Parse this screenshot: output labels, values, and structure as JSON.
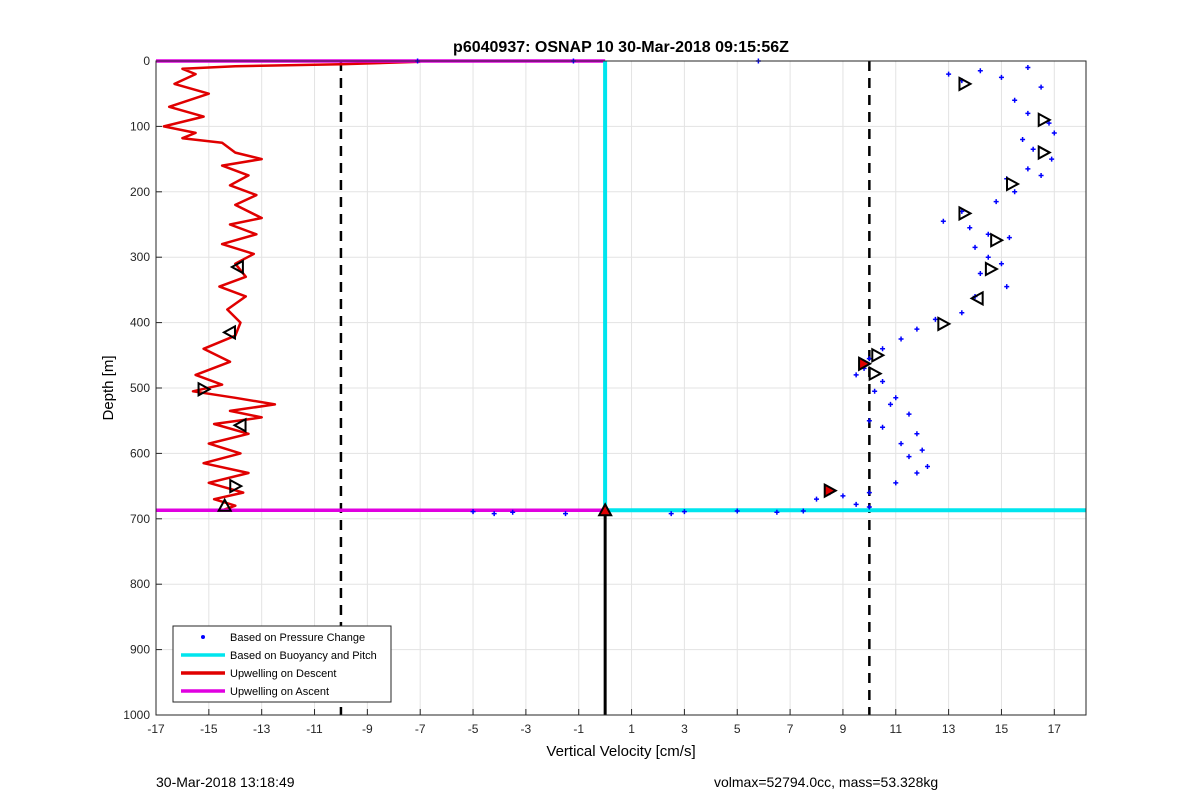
{
  "chart_data": {
    "type": "scatter",
    "title": "p6040937: OSNAP 10 30-Mar-2018 09:15:56Z",
    "xlabel": "Vertical Velocity [cm/s]",
    "ylabel": "Depth [m]",
    "xlim": [
      -17,
      18.2
    ],
    "ylim": [
      1000,
      0
    ],
    "y_reversed": true,
    "grid": true,
    "x_ticks": [
      -17,
      -15,
      -13,
      -11,
      -9,
      -7,
      -5,
      -3,
      -1,
      1,
      3,
      5,
      7,
      9,
      11,
      13,
      15,
      17
    ],
    "x_tick_labels": [
      "-17",
      "-15",
      "-13",
      "-11",
      "-9",
      "-7",
      "-5",
      "-3",
      "-1",
      "1",
      "3",
      "5",
      "7",
      "9",
      "11",
      "13",
      "15",
      "17"
    ],
    "y_ticks": [
      0,
      100,
      200,
      300,
      400,
      500,
      600,
      700,
      800,
      900,
      1000
    ],
    "y_tick_labels": [
      "0",
      "100",
      "200",
      "300",
      "400",
      "500",
      "600",
      "700",
      "800",
      "900",
      "1000"
    ],
    "legend_position": "bottom-left",
    "legend": [
      {
        "label": "Based on Pressure Change",
        "color": "#0000ff",
        "style": "dot"
      },
      {
        "label": "Based on Buoyancy and Pitch",
        "color": "#00e5ee",
        "style": "line"
      },
      {
        "label": "Upwelling on Descent",
        "color": "#e00000",
        "style": "line"
      },
      {
        "label": "Upwelling on Ascent",
        "color": "#e000e0",
        "style": "line"
      }
    ],
    "vlines_dashed": [
      -10,
      10
    ],
    "vline_solid": {
      "x": 0,
      "from_depth": 687,
      "to_depth": 1000
    },
    "series": [
      {
        "name": "Upwelling on Descent",
        "color": "#e00000",
        "type": "line",
        "points": [
          [
            -7,
            1
          ],
          [
            -10,
            5
          ],
          [
            -14,
            8
          ],
          [
            -16,
            12
          ],
          [
            -15.5,
            20
          ],
          [
            -16.3,
            35
          ],
          [
            -15,
            50
          ],
          [
            -16.5,
            70
          ],
          [
            -15.2,
            85
          ],
          [
            -16.7,
            100
          ],
          [
            -15.5,
            110
          ],
          [
            -16,
            118
          ],
          [
            -14.5,
            125
          ],
          [
            -14,
            140
          ],
          [
            -13,
            150
          ],
          [
            -14.5,
            160
          ],
          [
            -13.5,
            175
          ],
          [
            -14.2,
            190
          ],
          [
            -13.2,
            205
          ],
          [
            -14,
            220
          ],
          [
            -13,
            240
          ],
          [
            -14.2,
            250
          ],
          [
            -13.2,
            265
          ],
          [
            -14.5,
            280
          ],
          [
            -13.3,
            295
          ],
          [
            -14,
            310
          ],
          [
            -13.6,
            330
          ],
          [
            -14.6,
            345
          ],
          [
            -13.6,
            360
          ],
          [
            -14.3,
            380
          ],
          [
            -13.8,
            400
          ],
          [
            -14,
            420
          ],
          [
            -15.2,
            440
          ],
          [
            -14.2,
            460
          ],
          [
            -15.5,
            480
          ],
          [
            -14.5,
            495
          ],
          [
            -15.6,
            505
          ],
          [
            -14,
            515
          ],
          [
            -12.5,
            525
          ],
          [
            -14.2,
            535
          ],
          [
            -13,
            545
          ],
          [
            -14.8,
            555
          ],
          [
            -13.5,
            570
          ],
          [
            -15,
            585
          ],
          [
            -13.8,
            600
          ],
          [
            -15.2,
            615
          ],
          [
            -13.5,
            630
          ],
          [
            -15,
            645
          ],
          [
            -13.7,
            660
          ],
          [
            -14.8,
            670
          ],
          [
            -14,
            680
          ],
          [
            -14.5,
            687
          ]
        ]
      },
      {
        "name": "Upwelling on Ascent",
        "color": "#e000e0",
        "type": "hline",
        "segments": [
          [
            -17,
            0,
            0,
            0
          ],
          [
            -17,
            687,
            0,
            687
          ]
        ]
      },
      {
        "name": "Based on Buoyancy and Pitch",
        "color": "#00e5ee",
        "type": "line",
        "points": [
          [
            0,
            0
          ],
          [
            0,
            687
          ],
          [
            18.2,
            687
          ]
        ]
      },
      {
        "name": "Based on Pressure Change",
        "color": "#0000ff",
        "type": "scatter",
        "points": [
          [
            5.8,
            0
          ],
          [
            -1.2,
            0
          ],
          [
            -7.1,
            0
          ],
          [
            13,
            20
          ],
          [
            13.5,
            30
          ],
          [
            14.2,
            15
          ],
          [
            15,
            25
          ],
          [
            16,
            10
          ],
          [
            16.5,
            40
          ],
          [
            15.5,
            60
          ],
          [
            16,
            80
          ],
          [
            16.8,
            95
          ],
          [
            17,
            110
          ],
          [
            15.8,
            120
          ],
          [
            16.2,
            135
          ],
          [
            16.9,
            150
          ],
          [
            16,
            165
          ],
          [
            16.5,
            175
          ],
          [
            15.2,
            180
          ],
          [
            15.5,
            200
          ],
          [
            14.8,
            215
          ],
          [
            13.5,
            230
          ],
          [
            12.8,
            245
          ],
          [
            13.8,
            255
          ],
          [
            14.5,
            265
          ],
          [
            15.3,
            270
          ],
          [
            14,
            285
          ],
          [
            14.5,
            300
          ],
          [
            15,
            310
          ],
          [
            14.2,
            325
          ],
          [
            15.2,
            345
          ],
          [
            14,
            360
          ],
          [
            13.5,
            385
          ],
          [
            12.5,
            395
          ],
          [
            11.8,
            410
          ],
          [
            11.2,
            425
          ],
          [
            10.5,
            440
          ],
          [
            10,
            455
          ],
          [
            9.8,
            470
          ],
          [
            9.5,
            480
          ],
          [
            10.5,
            490
          ],
          [
            10.2,
            505
          ],
          [
            11,
            515
          ],
          [
            10.8,
            525
          ],
          [
            11.5,
            540
          ],
          [
            10,
            550
          ],
          [
            10.5,
            560
          ],
          [
            11.8,
            570
          ],
          [
            11.2,
            585
          ],
          [
            12,
            595
          ],
          [
            11.5,
            605
          ],
          [
            12.2,
            620
          ],
          [
            11.8,
            630
          ],
          [
            11,
            645
          ],
          [
            10,
            660
          ],
          [
            9,
            665
          ],
          [
            8.5,
            660
          ],
          [
            8,
            670
          ],
          [
            9.5,
            678
          ],
          [
            10,
            682
          ],
          [
            7.5,
            688
          ],
          [
            6.5,
            690
          ],
          [
            5,
            688
          ],
          [
            3,
            689
          ],
          [
            2.5,
            692
          ],
          [
            -3.5,
            690
          ],
          [
            -4.2,
            692
          ],
          [
            -5,
            689
          ],
          [
            -1.5,
            692
          ]
        ]
      },
      {
        "name": "triangle markers",
        "color": "#000000",
        "type": "markers",
        "points": [
          [
            13.6,
            35,
            "right"
          ],
          [
            16.6,
            90,
            "right"
          ],
          [
            16.6,
            140,
            "right"
          ],
          [
            15.4,
            188,
            "right"
          ],
          [
            13.6,
            233,
            "right"
          ],
          [
            14.8,
            274,
            "right"
          ],
          [
            14.6,
            318,
            "right"
          ],
          [
            14.1,
            363,
            "left"
          ],
          [
            12.8,
            402,
            "right"
          ],
          [
            10.3,
            450,
            "right"
          ],
          [
            10.2,
            478,
            "right"
          ],
          [
            9.8,
            463,
            "right-red"
          ],
          [
            8.5,
            657,
            "right-red"
          ],
          [
            -13.9,
            315,
            "left"
          ],
          [
            -14.2,
            415,
            "left"
          ],
          [
            -15.2,
            502,
            "right"
          ],
          [
            -13.8,
            557,
            "left"
          ],
          [
            -14,
            650,
            "right"
          ],
          [
            -14.4,
            680,
            "up"
          ],
          [
            0,
            687,
            "up-red"
          ]
        ]
      }
    ]
  },
  "footer": {
    "left": "30-Mar-2018 13:18:49",
    "right": "volmax=52794.0cc, mass=53.328kg"
  }
}
